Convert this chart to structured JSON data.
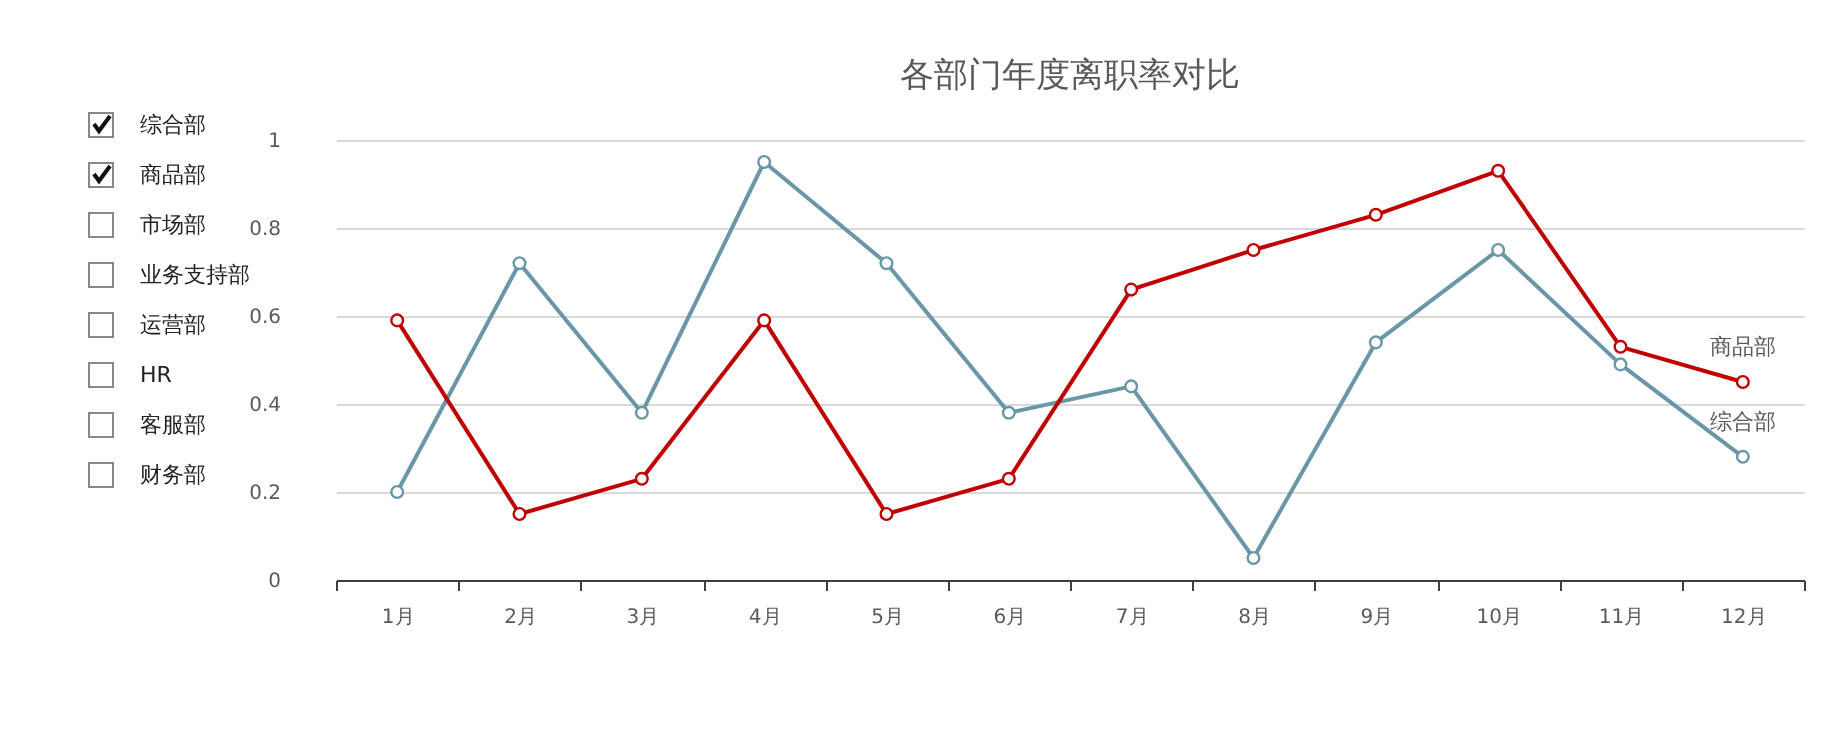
{
  "chart_data": {
    "type": "line",
    "title": "各部门年度离职率对比",
    "categories": [
      "1月",
      "2月",
      "3月",
      "4月",
      "5月",
      "6月",
      "7月",
      "8月",
      "9月",
      "10月",
      "11月",
      "12月"
    ],
    "series": [
      {
        "name": "综合部",
        "color": "#6a97a8",
        "values": [
          0.2,
          0.72,
          0.38,
          0.95,
          0.72,
          0.38,
          0.44,
          0.05,
          0.54,
          0.75,
          0.49,
          0.28
        ]
      },
      {
        "name": "商品部",
        "color": "#c00000",
        "values": [
          0.59,
          0.15,
          0.23,
          0.59,
          0.15,
          0.23,
          0.66,
          0.75,
          0.83,
          0.93,
          0.53,
          0.45
        ]
      }
    ],
    "annotations": [
      "市场部",
      "业务支持部",
      "运营部",
      "HR",
      "客服部",
      "财务部"
    ],
    "ylim": [
      0,
      1
    ],
    "yticks": [
      0,
      0.2,
      0.4,
      0.6,
      0.8,
      1
    ],
    "grid": "y",
    "marker": "circle",
    "line_style": "solid"
  }
}
